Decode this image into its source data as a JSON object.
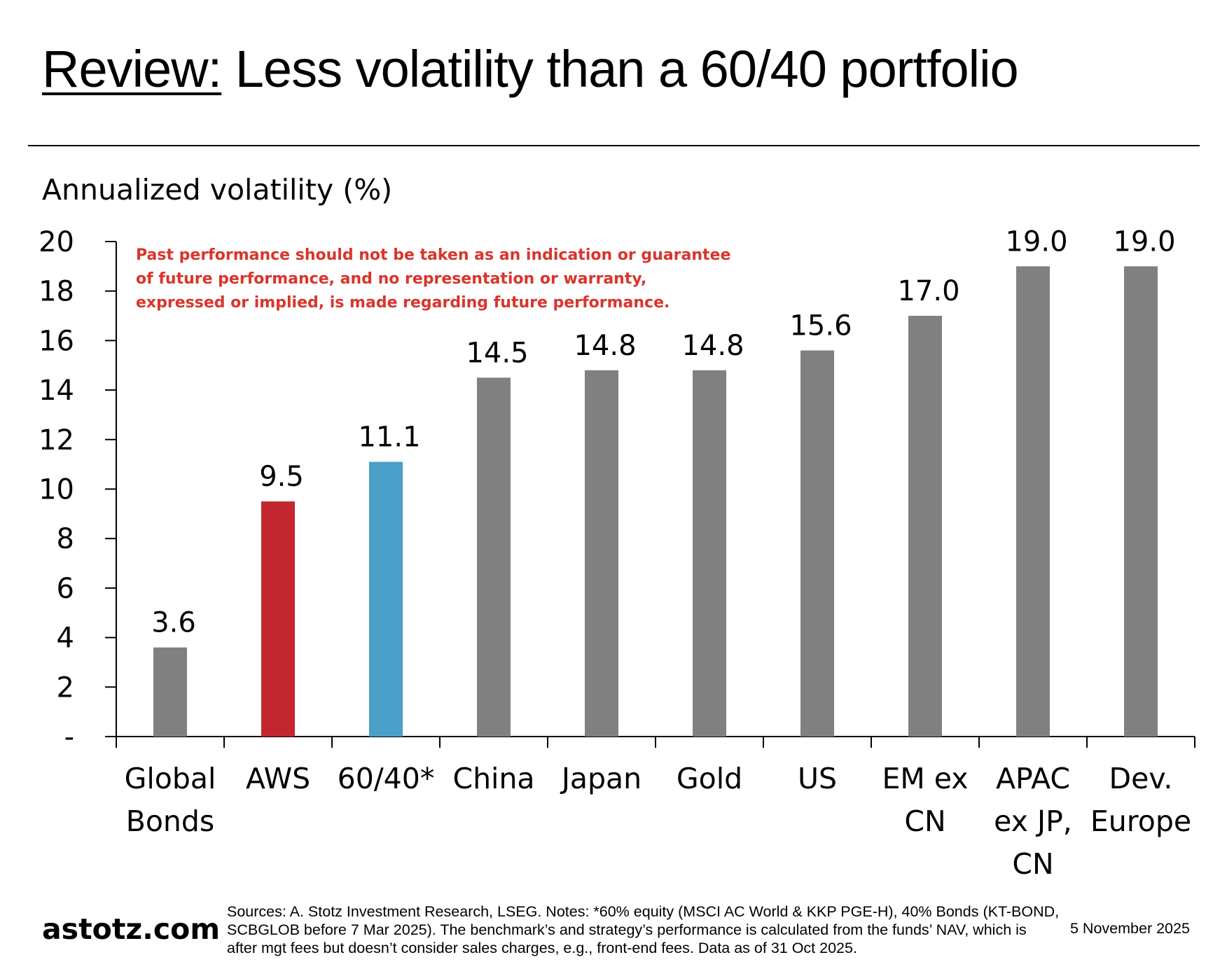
{
  "header": {
    "title_underlined": "Review:",
    "title_rest": "Less volatility than a 60/40 portfolio"
  },
  "chart_data": {
    "type": "bar",
    "title": "",
    "ylabel": "Annualized volatility (%)",
    "xlabel": "",
    "ylim": [
      0,
      20
    ],
    "yticks": [
      "-",
      "2",
      "4",
      "6",
      "8",
      "10",
      "12",
      "14",
      "16",
      "18",
      "20"
    ],
    "grid": false,
    "categories": [
      [
        "Global",
        "Bonds"
      ],
      [
        "AWS"
      ],
      [
        "60/40*"
      ],
      [
        "China"
      ],
      [
        "Japan"
      ],
      [
        "Gold"
      ],
      [
        "US"
      ],
      [
        "EM ex",
        "CN"
      ],
      [
        "APAC",
        "ex JP,",
        "CN"
      ],
      [
        "Dev.",
        "Europe"
      ]
    ],
    "values": [
      3.6,
      9.5,
      11.1,
      14.5,
      14.8,
      14.8,
      15.6,
      17.0,
      19.0,
      19.0
    ],
    "data_labels": [
      "3.6",
      "9.5",
      "11.1",
      "14.5",
      "14.8",
      "14.8",
      "15.6",
      "17.0",
      "19.0",
      "19.0"
    ],
    "colors": [
      "#808080",
      "#c1272d",
      "#4aa0c8",
      "#808080",
      "#808080",
      "#808080",
      "#808080",
      "#808080",
      "#808080",
      "#808080"
    ],
    "annotation": "Past performance should not be taken as an indication or guarantee of future performance, and no representation or warranty, expressed or implied, is made regarding future performance.",
    "annotation_color": "#d9352b"
  },
  "footer": {
    "logo": "astotz.com",
    "sources": "Sources: A. Stotz Investment Research, LSEG. Notes: *60% equity (MSCI AC World & KKP PGE-H), 40% Bonds (KT-BOND, SCBGLOB before 7 Mar 2025). The benchmark’s and strategy’s performance is calculated from the funds’ NAV, which is after mgt fees but doesn’t consider sales charges, e.g., front-end fees. Data as of 31 Oct 2025.",
    "date": "5 November 2025"
  }
}
